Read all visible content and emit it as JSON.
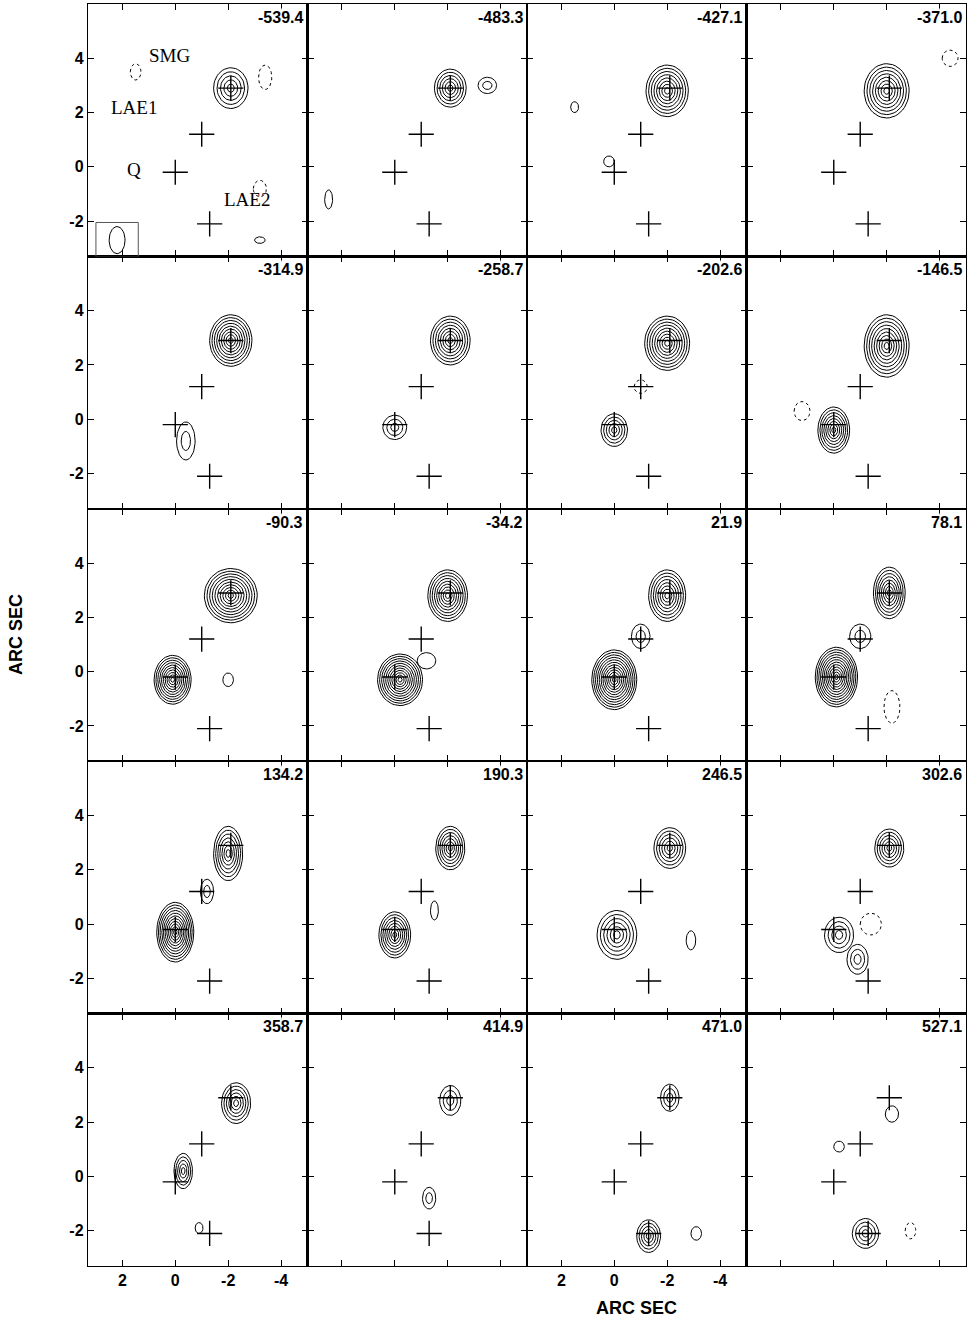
{
  "chart_data": {
    "type": "contour_channel_map",
    "xlabel": "ARC SEC",
    "ylabel": "ARC SEC",
    "xlim": [
      3.3,
      -5.0
    ],
    "ylim": [
      -3.3,
      6.0
    ],
    "xticks": [
      2,
      0,
      -2,
      -4
    ],
    "yticks": [
      4,
      2,
      0,
      -2
    ],
    "sources": [
      {
        "name": "SMG",
        "x": -2.1,
        "y": 2.9
      },
      {
        "name": "LAE1",
        "x": -1.0,
        "y": 1.2
      },
      {
        "name": "Q",
        "x": 0.0,
        "y": -0.2
      },
      {
        "name": "LAE2",
        "x": -1.3,
        "y": -2.1
      }
    ],
    "beam": {
      "x": 2.2,
      "y": -2.7,
      "rx": 0.3,
      "ry": 0.5
    },
    "panels": [
      {
        "velocity": -539.4,
        "blobs": [
          {
            "x": -2.1,
            "y": 2.9,
            "rx": 0.65,
            "ry": 0.75,
            "levels": 5
          },
          {
            "x": 1.5,
            "y": 3.5,
            "rx": 0.2,
            "ry": 0.3,
            "levels": 1,
            "negative": true
          },
          {
            "x": -3.4,
            "y": 3.3,
            "rx": 0.25,
            "ry": 0.45,
            "levels": 1,
            "negative": true
          },
          {
            "x": -3.2,
            "y": -0.8,
            "rx": 0.25,
            "ry": 0.3,
            "levels": 1,
            "negative": true
          },
          {
            "x": -3.2,
            "y": -2.7,
            "rx": 0.2,
            "ry": 0.12,
            "levels": 1
          }
        ]
      },
      {
        "velocity": -483.3,
        "blobs": [
          {
            "x": -2.1,
            "y": 2.9,
            "rx": 0.6,
            "ry": 0.7,
            "levels": 6
          },
          {
            "x": -3.5,
            "y": 3.0,
            "rx": 0.35,
            "ry": 0.3,
            "levels": 2
          },
          {
            "x": 2.5,
            "y": -1.2,
            "rx": 0.15,
            "ry": 0.35,
            "levels": 1
          }
        ]
      },
      {
        "velocity": -427.1,
        "blobs": [
          {
            "x": -2.0,
            "y": 2.8,
            "rx": 0.8,
            "ry": 0.95,
            "levels": 8
          },
          {
            "x": 0.2,
            "y": 0.2,
            "rx": 0.2,
            "ry": 0.2,
            "levels": 1
          },
          {
            "x": 1.5,
            "y": 2.2,
            "rx": 0.15,
            "ry": 0.2,
            "levels": 1
          }
        ]
      },
      {
        "velocity": -371.0,
        "velocity_label": "-371.0",
        "blobs": [
          {
            "x": -2.0,
            "y": 2.8,
            "rx": 0.85,
            "ry": 1.0,
            "levels": 8
          },
          {
            "x": -4.4,
            "y": 4.0,
            "rx": 0.3,
            "ry": 0.3,
            "levels": 1,
            "negative": true
          }
        ]
      },
      {
        "velocity": -314.9,
        "blobs": [
          {
            "x": -2.1,
            "y": 2.9,
            "rx": 0.8,
            "ry": 0.95,
            "levels": 9
          },
          {
            "x": -0.4,
            "y": -0.8,
            "rx": 0.35,
            "ry": 0.7,
            "levels": 2
          }
        ]
      },
      {
        "velocity": -258.7,
        "blobs": [
          {
            "x": -2.1,
            "y": 2.9,
            "rx": 0.75,
            "ry": 0.9,
            "levels": 8
          },
          {
            "x": 0.0,
            "y": -0.3,
            "rx": 0.45,
            "ry": 0.45,
            "levels": 3
          }
        ]
      },
      {
        "velocity": -202.6,
        "blobs": [
          {
            "x": -2.0,
            "y": 2.8,
            "rx": 0.85,
            "ry": 1.0,
            "levels": 9
          },
          {
            "x": 0.0,
            "y": -0.4,
            "rx": 0.5,
            "ry": 0.6,
            "levels": 5
          },
          {
            "x": -1.0,
            "y": 1.2,
            "rx": 0.25,
            "ry": 0.25,
            "levels": 1,
            "negative": true
          }
        ]
      },
      {
        "velocity": -146.5,
        "blobs": [
          {
            "x": -2.0,
            "y": 2.7,
            "rx": 0.85,
            "ry": 1.15,
            "levels": 9
          },
          {
            "x": 0.0,
            "y": -0.4,
            "rx": 0.6,
            "ry": 0.85,
            "levels": 8
          },
          {
            "x": 1.2,
            "y": 0.3,
            "rx": 0.3,
            "ry": 0.35,
            "levels": 1,
            "negative": true
          }
        ]
      },
      {
        "velocity": -90.3,
        "blobs": [
          {
            "x": -2.1,
            "y": 2.8,
            "rx": 1.0,
            "ry": 1.0,
            "levels": 10
          },
          {
            "x": 0.1,
            "y": -0.3,
            "rx": 0.7,
            "ry": 0.9,
            "levels": 10
          },
          {
            "x": -2.0,
            "y": -0.3,
            "rx": 0.2,
            "ry": 0.25,
            "levels": 1
          }
        ]
      },
      {
        "velocity": -34.2,
        "blobs": [
          {
            "x": -2.0,
            "y": 2.8,
            "rx": 0.75,
            "ry": 0.95,
            "levels": 9
          },
          {
            "x": -0.2,
            "y": -0.3,
            "rx": 0.85,
            "ry": 0.95,
            "levels": 11
          },
          {
            "x": -1.2,
            "y": 0.4,
            "rx": 0.35,
            "ry": 0.3,
            "levels": 1
          }
        ]
      },
      {
        "velocity": 21.9,
        "blobs": [
          {
            "x": -2.0,
            "y": 2.8,
            "rx": 0.7,
            "ry": 0.95,
            "levels": 8
          },
          {
            "x": 0.0,
            "y": -0.3,
            "rx": 0.85,
            "ry": 1.1,
            "levels": 12
          },
          {
            "x": -1.0,
            "y": 1.3,
            "rx": 0.35,
            "ry": 0.45,
            "levels": 2
          }
        ]
      },
      {
        "velocity": 78.1,
        "blobs": [
          {
            "x": -2.1,
            "y": 2.9,
            "rx": 0.6,
            "ry": 0.95,
            "levels": 8
          },
          {
            "x": -0.1,
            "y": -0.2,
            "rx": 0.8,
            "ry": 1.1,
            "levels": 12
          },
          {
            "x": -1.0,
            "y": 1.3,
            "rx": 0.4,
            "ry": 0.45,
            "levels": 2
          },
          {
            "x": -2.2,
            "y": -1.3,
            "rx": 0.3,
            "ry": 0.6,
            "levels": 1,
            "negative": true
          }
        ]
      },
      {
        "velocity": 134.2,
        "blobs": [
          {
            "x": -2.0,
            "y": 2.6,
            "rx": 0.55,
            "ry": 1.0,
            "levels": 7
          },
          {
            "x": 0.0,
            "y": -0.3,
            "rx": 0.7,
            "ry": 1.1,
            "levels": 11
          },
          {
            "x": -1.2,
            "y": 1.2,
            "rx": 0.25,
            "ry": 0.45,
            "levels": 2
          }
        ]
      },
      {
        "velocity": 190.3,
        "blobs": [
          {
            "x": -2.1,
            "y": 2.8,
            "rx": 0.55,
            "ry": 0.8,
            "levels": 7
          },
          {
            "x": 0.0,
            "y": -0.4,
            "rx": 0.6,
            "ry": 0.85,
            "levels": 8
          },
          {
            "x": -1.5,
            "y": 0.5,
            "rx": 0.15,
            "ry": 0.35,
            "levels": 1
          }
        ]
      },
      {
        "velocity": 246.5,
        "blobs": [
          {
            "x": -2.1,
            "y": 2.8,
            "rx": 0.6,
            "ry": 0.75,
            "levels": 6
          },
          {
            "x": -0.1,
            "y": -0.4,
            "rx": 0.75,
            "ry": 0.9,
            "levels": 6
          },
          {
            "x": -2.9,
            "y": -0.6,
            "rx": 0.18,
            "ry": 0.35,
            "levels": 1
          }
        ]
      },
      {
        "velocity": 302.6,
        "blobs": [
          {
            "x": -2.1,
            "y": 2.8,
            "rx": 0.55,
            "ry": 0.7,
            "levels": 6
          },
          {
            "x": -0.2,
            "y": -0.4,
            "rx": 0.55,
            "ry": 0.65,
            "levels": 4
          },
          {
            "x": -0.9,
            "y": -1.3,
            "rx": 0.4,
            "ry": 0.55,
            "levels": 3
          },
          {
            "x": -1.4,
            "y": 0.0,
            "rx": 0.4,
            "ry": 0.4,
            "levels": 1,
            "negative": true
          }
        ]
      },
      {
        "velocity": 358.7,
        "blobs": [
          {
            "x": -2.3,
            "y": 2.7,
            "rx": 0.55,
            "ry": 0.75,
            "levels": 6
          },
          {
            "x": -0.3,
            "y": 0.2,
            "rx": 0.35,
            "ry": 0.65,
            "levels": 5
          },
          {
            "x": -0.9,
            "y": -1.9,
            "rx": 0.15,
            "ry": 0.2,
            "levels": 1
          }
        ]
      },
      {
        "velocity": 414.9,
        "blobs": [
          {
            "x": -2.1,
            "y": 2.8,
            "rx": 0.4,
            "ry": 0.55,
            "levels": 3
          },
          {
            "x": -1.3,
            "y": -0.8,
            "rx": 0.25,
            "ry": 0.4,
            "levels": 2
          }
        ]
      },
      {
        "velocity": 471.0,
        "velocity_label": "471.0",
        "blobs": [
          {
            "x": -2.1,
            "y": 2.9,
            "rx": 0.35,
            "ry": 0.5,
            "levels": 3
          },
          {
            "x": -1.3,
            "y": -2.2,
            "rx": 0.45,
            "ry": 0.6,
            "levels": 5
          },
          {
            "x": -3.1,
            "y": -2.1,
            "rx": 0.2,
            "ry": 0.25,
            "levels": 1
          }
        ]
      },
      {
        "velocity": 527.1,
        "blobs": [
          {
            "x": -2.2,
            "y": 2.3,
            "rx": 0.25,
            "ry": 0.3,
            "levels": 1
          },
          {
            "x": -1.2,
            "y": -2.1,
            "rx": 0.5,
            "ry": 0.55,
            "levels": 4
          },
          {
            "x": -0.2,
            "y": 1.1,
            "rx": 0.2,
            "ry": 0.2,
            "levels": 1
          },
          {
            "x": -2.9,
            "y": -2.0,
            "rx": 0.2,
            "ry": 0.3,
            "levels": 1,
            "negative": true
          }
        ]
      }
    ]
  }
}
